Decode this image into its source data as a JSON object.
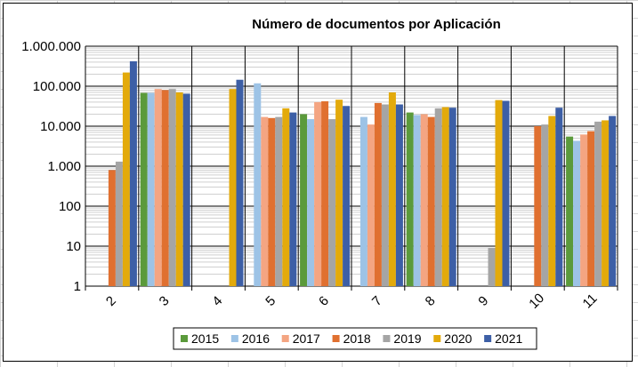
{
  "chart_data": {
    "type": "bar",
    "title": "Número de documentos por Aplicación",
    "xlabel": "",
    "ylabel": "",
    "yscale": "log",
    "ylim": [
      1,
      1000000
    ],
    "ytick_labels": [
      "1",
      "10",
      "100",
      "1.000",
      "10.000",
      "100.000",
      "1.000.000"
    ],
    "categories": [
      "2",
      "3",
      "4",
      "5",
      "6",
      "7",
      "8",
      "9",
      "10",
      "11"
    ],
    "grid": true,
    "legend_position": "bottom",
    "series": [
      {
        "name": "2015",
        "color": "#5b9a3b",
        "values": [
          null,
          68000,
          null,
          null,
          20000,
          null,
          22000,
          null,
          null,
          5500
        ]
      },
      {
        "name": "2016",
        "color": "#9dc3e6",
        "values": [
          null,
          68000,
          null,
          118000,
          15000,
          17000,
          19000,
          null,
          null,
          4300
        ]
      },
      {
        "name": "2017",
        "color": "#f4a582",
        "values": [
          null,
          85000,
          null,
          17000,
          40000,
          11000,
          20000,
          null,
          null,
          6200
        ]
      },
      {
        "name": "2018",
        "color": "#e07030",
        "values": [
          800,
          80000,
          null,
          16000,
          42000,
          38000,
          17000,
          null,
          10000,
          7500
        ]
      },
      {
        "name": "2019",
        "color": "#a5a5a5",
        "values": [
          1300,
          85000,
          null,
          17000,
          15000,
          35000,
          28000,
          9,
          11000,
          13000
        ]
      },
      {
        "name": "2020",
        "color": "#e3aa0b",
        "values": [
          220000,
          70000,
          85000,
          28000,
          46000,
          70000,
          30000,
          45000,
          18000,
          14000
        ]
      },
      {
        "name": "2021",
        "color": "#3d5fa6",
        "values": [
          420000,
          65000,
          145000,
          22000,
          32000,
          35000,
          29000,
          43000,
          29000,
          18000
        ]
      }
    ]
  }
}
